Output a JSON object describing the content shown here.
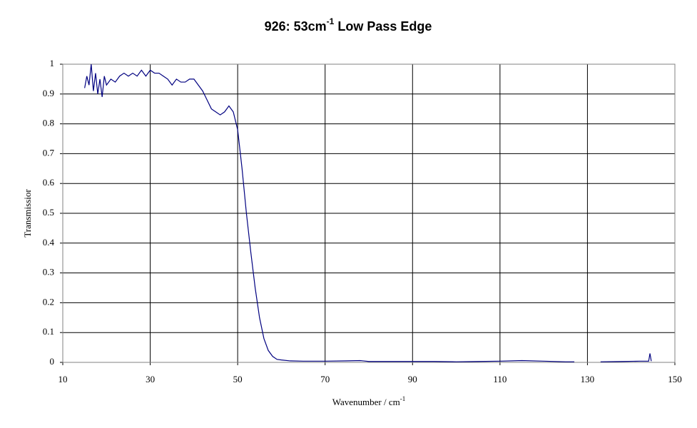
{
  "chart_data": {
    "type": "line",
    "title": [
      "926: 53cm",
      "-1",
      " Low Pass Edge"
    ],
    "x_label": [
      "Wavenumber / cm",
      "-1"
    ],
    "y_label": "Transmissior",
    "x": [
      15,
      15.5,
      16,
      16.5,
      17,
      17.5,
      18,
      18.5,
      19,
      19.5,
      20,
      21,
      22,
      23,
      24,
      25,
      26,
      27,
      28,
      29,
      30,
      31,
      32,
      33,
      34,
      35,
      36,
      37,
      38,
      39,
      40,
      41,
      42,
      43,
      44,
      45,
      46,
      47,
      48,
      49,
      50,
      51,
      52,
      53,
      54,
      55,
      56,
      57,
      58,
      59,
      60,
      62,
      65,
      70,
      75,
      78,
      80,
      85,
      90,
      95,
      100,
      105,
      110,
      115,
      120,
      125,
      127,
      130,
      133,
      138,
      142,
      144,
      144.3,
      144.6
    ],
    "series": [
      {
        "color": "#000080",
        "values": [
          0.92,
          0.96,
          0.93,
          1.0,
          0.91,
          0.97,
          0.9,
          0.95,
          0.89,
          0.96,
          0.93,
          0.95,
          0.94,
          0.96,
          0.97,
          0.96,
          0.97,
          0.96,
          0.98,
          0.96,
          0.98,
          0.97,
          0.97,
          0.96,
          0.95,
          0.93,
          0.95,
          0.94,
          0.94,
          0.95,
          0.95,
          0.93,
          0.91,
          0.88,
          0.85,
          0.84,
          0.83,
          0.84,
          0.86,
          0.84,
          0.78,
          0.65,
          0.5,
          0.37,
          0.25,
          0.15,
          0.08,
          0.04,
          0.02,
          0.01,
          0.008,
          0.005,
          0.004,
          0.004,
          0.005,
          0.006,
          0.003,
          0.003,
          0.003,
          0.003,
          0.002,
          0.003,
          0.004,
          0.006,
          0.004,
          0.002,
          0.002,
          null,
          0.002,
          0.003,
          0.004,
          0.004,
          0.03,
          0.004
        ]
      }
    ],
    "xlim": [
      10,
      150
    ],
    "xticks": [
      10,
      30,
      50,
      70,
      90,
      110,
      130,
      150
    ],
    "ylim": [
      0,
      1
    ],
    "yticks": [
      0,
      0.1,
      0.2,
      0.3,
      0.4,
      0.5,
      0.6,
      0.7,
      0.8,
      0.9,
      1
    ],
    "grid": true
  }
}
